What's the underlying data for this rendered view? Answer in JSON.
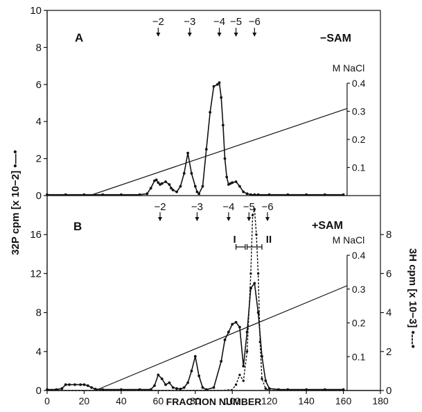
{
  "chart_data": [
    {
      "type": "line",
      "panel_label": "A",
      "condition": "−SAM",
      "xlabel": "FRACTION NUMBER",
      "ylabel": "32P cpm [x 10−2] •—•",
      "xlim": [
        0,
        180
      ],
      "ylim": [
        0,
        10
      ],
      "xticks": [
        0,
        20,
        40,
        60,
        80,
        100,
        120,
        140,
        160,
        180
      ],
      "yticks": [
        0,
        2,
        4,
        6,
        8,
        10
      ],
      "right_axis_label": "M NaCl",
      "right_ylim": [
        0,
        0.4
      ],
      "right_ticks": [
        0.1,
        0.2,
        0.3,
        0.4
      ],
      "markers": [
        {
          "label": "−2",
          "x": 60
        },
        {
          "label": "−3",
          "x": 77
        },
        {
          "label": "−4",
          "x": 93
        },
        {
          "label": "−5",
          "x": 102
        },
        {
          "label": "−6",
          "x": 112
        }
      ],
      "series": [
        {
          "x": [
            0,
            10,
            20,
            30,
            40,
            50,
            54,
            56,
            58,
            59,
            60,
            61,
            62,
            64,
            66,
            67,
            68,
            70,
            72,
            74,
            76,
            78,
            80,
            81,
            82,
            84,
            86,
            88,
            90,
            92,
            93,
            94,
            95,
            96,
            97,
            98,
            99,
            100,
            102,
            104,
            106,
            108,
            110,
            112,
            114,
            120,
            130,
            140,
            150,
            160
          ],
          "y": [
            0.05,
            0.05,
            0.05,
            0.05,
            0.05,
            0.05,
            0.1,
            0.4,
            0.8,
            0.85,
            0.7,
            0.6,
            0.65,
            0.75,
            0.6,
            0.4,
            0.3,
            0.2,
            0.5,
            1.2,
            2.3,
            1.2,
            0.5,
            0.2,
            0.1,
            0.5,
            2.5,
            4.5,
            5.9,
            6.0,
            6.1,
            5.3,
            3.8,
            2.0,
            1.0,
            0.6,
            0.65,
            0.7,
            0.75,
            0.5,
            0.2,
            0.1,
            0.05,
            0.05,
            0.05,
            0.05,
            0.05,
            0.05,
            0.05,
            0.05
          ]
        }
      ],
      "gradient": {
        "x": [
          23,
          162
        ],
        "y": [
          0,
          0.31
        ]
      }
    },
    {
      "type": "line",
      "panel_label": "B",
      "condition": "+SAM",
      "xlabel": "FRACTION NUMBER",
      "ylabel": "32P cpm [x 10−2] •—•",
      "xlim": [
        0,
        180
      ],
      "ylim": [
        0,
        20
      ],
      "xticks": [
        0,
        20,
        40,
        60,
        80,
        100,
        120,
        140,
        160,
        180
      ],
      "yticks": [
        0,
        4,
        8,
        12,
        16
      ],
      "right_axis_label": "M NaCl",
      "right_ylim": [
        0,
        0.4
      ],
      "right_ticks": [
        0.1,
        0.2,
        0.3,
        0.4
      ],
      "right2_axis_label": "3H cpm [x 10−3] •---•",
      "right2_ylim": [
        0,
        10
      ],
      "right2_ticks": [
        0,
        2,
        4,
        6,
        8
      ],
      "markers": [
        {
          "label": "−2",
          "x": 61
        },
        {
          "label": "−3",
          "x": 81
        },
        {
          "label": "−4",
          "x": 98
        },
        {
          "label": "−5",
          "x": 109
        },
        {
          "label": "−6",
          "x": 119
        }
      ],
      "fraction_labels": [
        {
          "label": "I",
          "x_range": [
            102,
            107
          ]
        },
        {
          "label": "II",
          "x_range": [
            108,
            116
          ]
        }
      ],
      "series": [
        {
          "x": [
            0,
            5,
            8,
            10,
            12,
            15,
            18,
            20,
            22,
            24,
            26,
            30,
            40,
            50,
            56,
            58,
            60,
            62,
            64,
            66,
            68,
            70,
            72,
            74,
            76,
            78,
            80,
            82,
            84,
            86,
            90,
            94,
            96,
            98,
            100,
            102,
            104,
            106,
            108,
            110,
            112,
            114,
            116,
            118,
            120,
            125,
            130,
            140,
            150,
            160
          ],
          "y": [
            0.1,
            0.1,
            0.2,
            0.6,
            0.6,
            0.6,
            0.6,
            0.6,
            0.5,
            0.3,
            0.15,
            0.1,
            0.1,
            0.1,
            0.1,
            0.5,
            1.6,
            1.2,
            0.6,
            0.8,
            0.3,
            0.2,
            0.15,
            0.3,
            0.8,
            2.0,
            3.5,
            1.5,
            0.3,
            0.1,
            0.3,
            3.0,
            5.2,
            6.0,
            6.8,
            7.0,
            6.5,
            2.5,
            6.0,
            10.5,
            11.0,
            8.0,
            3.5,
            1.0,
            0.2,
            0.1,
            0.1,
            0.1,
            0.1,
            0.1
          ]
        },
        {
          "x": [
            0,
            60,
            80,
            94,
            100,
            102,
            104,
            106,
            108,
            110,
            111,
            112,
            113,
            114,
            115,
            116,
            118,
            120,
            130,
            160
          ],
          "y": [
            0,
            0,
            0,
            0,
            0.05,
            0.3,
            0.8,
            0.5,
            2.0,
            6.0,
            9.0,
            9.3,
            8.0,
            6.0,
            2.5,
            0.6,
            0.1,
            0,
            0,
            0
          ]
        }
      ],
      "gradient": {
        "x": [
          26,
          162
        ],
        "y": [
          0,
          0.31
        ]
      }
    }
  ]
}
